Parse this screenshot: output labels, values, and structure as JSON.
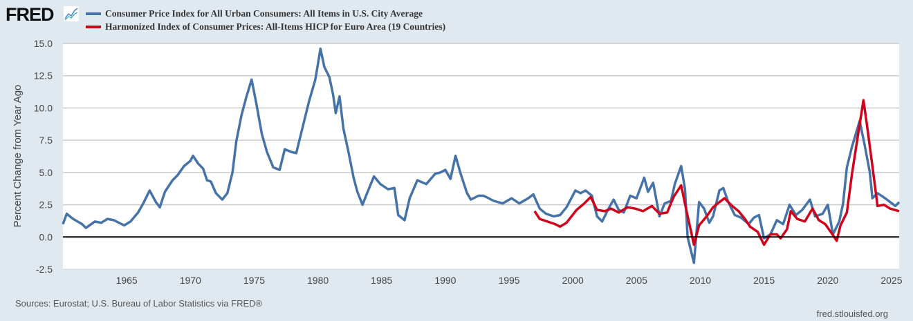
{
  "header": {
    "logo": "FRED",
    "logo_icon": "line-chart-icon"
  },
  "footer": {
    "sources": "Sources: Eurostat; U.S. Bureau of Labor Statistics via FRED®",
    "url": "fred.stlouisfed.org"
  },
  "chart_data": {
    "type": "line",
    "ylabel": "Percent Change from Year Ago",
    "xlim": [
      1960,
      2025.6
    ],
    "ylim": [
      -2.5,
      15
    ],
    "yticks": [
      "15.0",
      "12.5",
      "10.0",
      "7.5",
      "5.0",
      "2.5",
      "0.0",
      "-2.5"
    ],
    "xticks": [
      "1965",
      "1970",
      "1975",
      "1980",
      "1985",
      "1990",
      "1995",
      "2000",
      "2005",
      "2010",
      "2015",
      "2020",
      "2025"
    ],
    "grid": true,
    "legend": "top-left",
    "series": [
      {
        "name": "Consumer Price Index for All Urban Consumers: All Items in U.S. City Average",
        "color": "#4572a7",
        "points": [
          [
            1960,
            1.0
          ],
          [
            1960.3,
            1.8
          ],
          [
            1960.8,
            1.4
          ],
          [
            1961.5,
            1.0
          ],
          [
            1961.8,
            0.7
          ],
          [
            1962.5,
            1.2
          ],
          [
            1963,
            1.1
          ],
          [
            1963.5,
            1.4
          ],
          [
            1964,
            1.3
          ],
          [
            1964.8,
            0.9
          ],
          [
            1965.3,
            1.2
          ],
          [
            1965.9,
            1.9
          ],
          [
            1966.3,
            2.6
          ],
          [
            1966.8,
            3.6
          ],
          [
            1967.3,
            2.7
          ],
          [
            1967.6,
            2.3
          ],
          [
            1968,
            3.5
          ],
          [
            1968.6,
            4.4
          ],
          [
            1969,
            4.8
          ],
          [
            1969.5,
            5.5
          ],
          [
            1970,
            5.9
          ],
          [
            1970.2,
            6.3
          ],
          [
            1970.6,
            5.7
          ],
          [
            1971,
            5.3
          ],
          [
            1971.3,
            4.4
          ],
          [
            1971.6,
            4.3
          ],
          [
            1972,
            3.4
          ],
          [
            1972.5,
            2.9
          ],
          [
            1972.9,
            3.4
          ],
          [
            1973.3,
            5.0
          ],
          [
            1973.6,
            7.4
          ],
          [
            1974,
            9.4
          ],
          [
            1974.4,
            10.9
          ],
          [
            1974.8,
            12.2
          ],
          [
            1975.2,
            10.2
          ],
          [
            1975.6,
            8.0
          ],
          [
            1976,
            6.6
          ],
          [
            1976.5,
            5.4
          ],
          [
            1977,
            5.2
          ],
          [
            1977.4,
            6.8
          ],
          [
            1977.9,
            6.6
          ],
          [
            1978.3,
            6.5
          ],
          [
            1978.8,
            8.5
          ],
          [
            1979.3,
            10.5
          ],
          [
            1979.8,
            12.2
          ],
          [
            1980.2,
            14.6
          ],
          [
            1980.5,
            13.2
          ],
          [
            1980.9,
            12.4
          ],
          [
            1981.2,
            11.0
          ],
          [
            1981.4,
            9.6
          ],
          [
            1981.7,
            10.9
          ],
          [
            1982,
            8.4
          ],
          [
            1982.4,
            6.6
          ],
          [
            1982.8,
            4.6
          ],
          [
            1983.1,
            3.5
          ],
          [
            1983.5,
            2.5
          ],
          [
            1983.9,
            3.5
          ],
          [
            1984.4,
            4.7
          ],
          [
            1984.9,
            4.1
          ],
          [
            1985.5,
            3.7
          ],
          [
            1986,
            3.8
          ],
          [
            1986.3,
            1.7
          ],
          [
            1986.8,
            1.3
          ],
          [
            1987.2,
            3.0
          ],
          [
            1987.8,
            4.4
          ],
          [
            1988.5,
            4.1
          ],
          [
            1989.2,
            4.9
          ],
          [
            1989.6,
            5.0
          ],
          [
            1990,
            5.2
          ],
          [
            1990.4,
            4.5
          ],
          [
            1990.8,
            6.3
          ],
          [
            1991.2,
            4.9
          ],
          [
            1991.7,
            3.4
          ],
          [
            1992,
            2.9
          ],
          [
            1992.6,
            3.2
          ],
          [
            1993,
            3.2
          ],
          [
            1993.8,
            2.8
          ],
          [
            1994.5,
            2.6
          ],
          [
            1995.2,
            3.0
          ],
          [
            1995.8,
            2.6
          ],
          [
            1996.5,
            3.0
          ],
          [
            1996.9,
            3.3
          ],
          [
            1997.4,
            2.2
          ],
          [
            1997.9,
            1.8
          ],
          [
            1998.5,
            1.6
          ],
          [
            1999,
            1.7
          ],
          [
            1999.5,
            2.3
          ],
          [
            2000.2,
            3.6
          ],
          [
            2000.6,
            3.4
          ],
          [
            2001,
            3.6
          ],
          [
            2001.5,
            3.2
          ],
          [
            2001.9,
            1.6
          ],
          [
            2002.3,
            1.2
          ],
          [
            2002.8,
            2.2
          ],
          [
            2003.2,
            2.9
          ],
          [
            2003.6,
            2.1
          ],
          [
            2004,
            1.9
          ],
          [
            2004.5,
            3.2
          ],
          [
            2005,
            3.0
          ],
          [
            2005.6,
            4.6
          ],
          [
            2005.9,
            3.5
          ],
          [
            2006.3,
            4.2
          ],
          [
            2006.8,
            1.6
          ],
          [
            2007.2,
            2.6
          ],
          [
            2007.7,
            2.8
          ],
          [
            2008,
            4.1
          ],
          [
            2008.5,
            5.5
          ],
          [
            2008.8,
            3.7
          ],
          [
            2009,
            0.0
          ],
          [
            2009.5,
            -2.0
          ],
          [
            2009.9,
            2.7
          ],
          [
            2010.3,
            2.2
          ],
          [
            2010.7,
            1.1
          ],
          [
            2011,
            1.6
          ],
          [
            2011.5,
            3.6
          ],
          [
            2011.8,
            3.8
          ],
          [
            2012.2,
            2.7
          ],
          [
            2012.7,
            1.7
          ],
          [
            2013.2,
            1.5
          ],
          [
            2013.8,
            1.0
          ],
          [
            2014.2,
            1.5
          ],
          [
            2014.6,
            1.7
          ],
          [
            2015,
            -0.1
          ],
          [
            2015.5,
            0.2
          ],
          [
            2016,
            1.3
          ],
          [
            2016.5,
            1.0
          ],
          [
            2017,
            2.5
          ],
          [
            2017.5,
            1.7
          ],
          [
            2018,
            2.1
          ],
          [
            2018.6,
            2.9
          ],
          [
            2019,
            1.6
          ],
          [
            2019.6,
            1.8
          ],
          [
            2020,
            2.5
          ],
          [
            2020.4,
            0.2
          ],
          [
            2020.9,
            1.2
          ],
          [
            2021.2,
            2.6
          ],
          [
            2021.5,
            5.4
          ],
          [
            2021.9,
            7.0
          ],
          [
            2022.5,
            9.0
          ],
          [
            2022.9,
            7.1
          ],
          [
            2023.3,
            5.0
          ],
          [
            2023.5,
            3.0
          ],
          [
            2023.9,
            3.4
          ],
          [
            2024.5,
            3.0
          ],
          [
            2024.9,
            2.7
          ],
          [
            2025.3,
            2.4
          ],
          [
            2025.6,
            2.7
          ]
        ]
      },
      {
        "name": "Harmonized Index of Consumer Prices: All-Items HICP for Euro Area (19 Countries)",
        "color": "#d0021b",
        "points": [
          [
            1997,
            2.0
          ],
          [
            1997.4,
            1.4
          ],
          [
            1998,
            1.2
          ],
          [
            1998.6,
            1.0
          ],
          [
            1999,
            0.8
          ],
          [
            1999.5,
            1.1
          ],
          [
            2000.3,
            2.1
          ],
          [
            2000.9,
            2.6
          ],
          [
            2001.4,
            3.1
          ],
          [
            2001.9,
            2.1
          ],
          [
            2002.5,
            2.0
          ],
          [
            2003,
            2.2
          ],
          [
            2003.6,
            1.9
          ],
          [
            2004.3,
            2.3
          ],
          [
            2004.9,
            2.2
          ],
          [
            2005.5,
            2.0
          ],
          [
            2006.2,
            2.4
          ],
          [
            2006.8,
            1.8
          ],
          [
            2007.4,
            1.9
          ],
          [
            2007.9,
            3.1
          ],
          [
            2008.5,
            4.0
          ],
          [
            2008.9,
            2.1
          ],
          [
            2009.5,
            -0.6
          ],
          [
            2009.9,
            0.9
          ],
          [
            2010.5,
            1.6
          ],
          [
            2011,
            2.3
          ],
          [
            2011.5,
            2.7
          ],
          [
            2011.9,
            3.0
          ],
          [
            2012.5,
            2.4
          ],
          [
            2013,
            2.0
          ],
          [
            2013.5,
            1.4
          ],
          [
            2013.9,
            0.8
          ],
          [
            2014.5,
            0.4
          ],
          [
            2015,
            -0.6
          ],
          [
            2015.5,
            0.2
          ],
          [
            2016,
            0.2
          ],
          [
            2016.3,
            -0.1
          ],
          [
            2016.8,
            0.6
          ],
          [
            2017.1,
            2.0
          ],
          [
            2017.6,
            1.4
          ],
          [
            2018.2,
            1.2
          ],
          [
            2018.8,
            2.2
          ],
          [
            2019.3,
            1.3
          ],
          [
            2019.8,
            1.0
          ],
          [
            2020.3,
            0.3
          ],
          [
            2020.7,
            -0.3
          ],
          [
            2021,
            0.9
          ],
          [
            2021.5,
            1.9
          ],
          [
            2021.9,
            4.9
          ],
          [
            2022.4,
            8.1
          ],
          [
            2022.8,
            10.6
          ],
          [
            2023.1,
            8.5
          ],
          [
            2023.5,
            5.5
          ],
          [
            2023.9,
            2.4
          ],
          [
            2024.4,
            2.5
          ],
          [
            2024.9,
            2.2
          ],
          [
            2025.6,
            2.0
          ]
        ]
      }
    ]
  }
}
